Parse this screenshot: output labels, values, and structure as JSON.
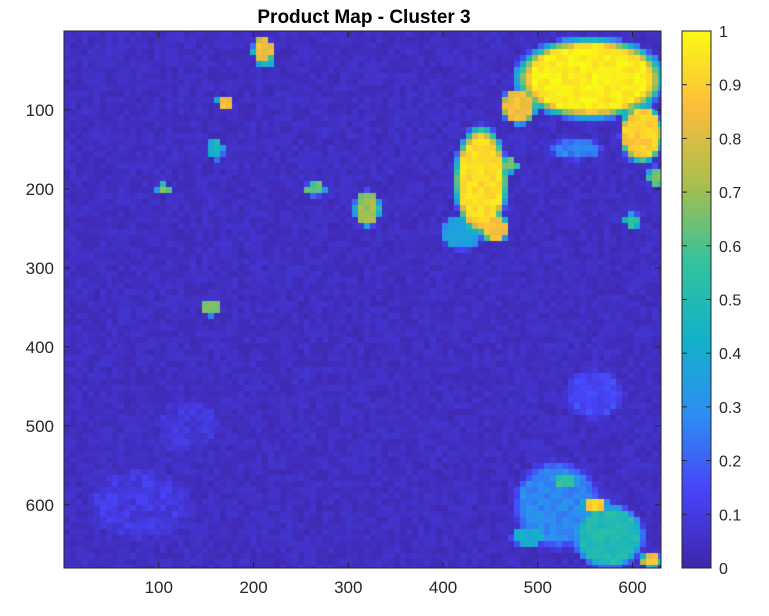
{
  "chart_data": {
    "type": "heatmap",
    "title": "Product Map - Cluster 3",
    "xlabel": "",
    "ylabel": "",
    "xlim": [
      0,
      630
    ],
    "ylim": [
      0,
      680
    ],
    "y_reversed": true,
    "x_ticks": [
      100,
      200,
      300,
      400,
      500,
      600
    ],
    "y_ticks": [
      100,
      200,
      300,
      400,
      500,
      600
    ],
    "grid": false,
    "colormap": "parula",
    "colormap_stops": [
      "#3e26a8",
      "#4743f8",
      "#2d8ef2",
      "#12b2c9",
      "#35c29c",
      "#a8bf4e",
      "#fdbc3c",
      "#f9fa14"
    ],
    "background_level": 0.02,
    "colorbar": {
      "position": "right",
      "range": [
        0,
        1
      ],
      "ticks": [
        "0",
        "0.1",
        "0.2",
        "0.3",
        "0.4",
        "0.5",
        "0.6",
        "0.7",
        "0.8",
        "0.9",
        "1"
      ]
    },
    "blobs": [
      {
        "x": 555,
        "y": 60,
        "rx": 85,
        "ry": 55,
        "v": 0.97
      },
      {
        "x": 610,
        "y": 130,
        "rx": 25,
        "ry": 40,
        "v": 0.9
      },
      {
        "x": 480,
        "y": 95,
        "rx": 20,
        "ry": 25,
        "v": 0.85
      },
      {
        "x": 440,
        "y": 190,
        "rx": 30,
        "ry": 75,
        "v": 0.93
      },
      {
        "x": 455,
        "y": 250,
        "rx": 15,
        "ry": 20,
        "v": 0.85
      },
      {
        "x": 540,
        "y": 150,
        "rx": 30,
        "ry": 15,
        "v": 0.25
      },
      {
        "x": 470,
        "y": 170,
        "rx": 10,
        "ry": 10,
        "v": 0.65
      },
      {
        "x": 420,
        "y": 255,
        "rx": 25,
        "ry": 25,
        "v": 0.35
      },
      {
        "x": 600,
        "y": 240,
        "rx": 10,
        "ry": 10,
        "v": 0.55
      },
      {
        "x": 625,
        "y": 185,
        "rx": 10,
        "ry": 15,
        "v": 0.65
      },
      {
        "x": 210,
        "y": 25,
        "rx": 12,
        "ry": 20,
        "v": 0.85
      },
      {
        "x": 215,
        "y": 40,
        "rx": 8,
        "ry": 10,
        "v": 0.45
      },
      {
        "x": 170,
        "y": 90,
        "rx": 10,
        "ry": 10,
        "v": 0.85
      },
      {
        "x": 160,
        "y": 150,
        "rx": 10,
        "ry": 15,
        "v": 0.45
      },
      {
        "x": 105,
        "y": 200,
        "rx": 8,
        "ry": 8,
        "v": 0.65
      },
      {
        "x": 265,
        "y": 200,
        "rx": 12,
        "ry": 10,
        "v": 0.6
      },
      {
        "x": 320,
        "y": 225,
        "rx": 15,
        "ry": 25,
        "v": 0.7
      },
      {
        "x": 155,
        "y": 350,
        "rx": 10,
        "ry": 12,
        "v": 0.65
      },
      {
        "x": 520,
        "y": 600,
        "rx": 50,
        "ry": 60,
        "v": 0.28
      },
      {
        "x": 575,
        "y": 640,
        "rx": 40,
        "ry": 45,
        "v": 0.5
      },
      {
        "x": 560,
        "y": 600,
        "rx": 15,
        "ry": 10,
        "v": 0.9
      },
      {
        "x": 620,
        "y": 670,
        "rx": 12,
        "ry": 12,
        "v": 0.85
      },
      {
        "x": 490,
        "y": 640,
        "rx": 20,
        "ry": 15,
        "v": 0.4
      },
      {
        "x": 530,
        "y": 570,
        "rx": 15,
        "ry": 10,
        "v": 0.55
      },
      {
        "x": 560,
        "y": 460,
        "rx": 35,
        "ry": 35,
        "v": 0.15
      },
      {
        "x": 80,
        "y": 600,
        "rx": 60,
        "ry": 50,
        "v": 0.1
      },
      {
        "x": 130,
        "y": 500,
        "rx": 40,
        "ry": 40,
        "v": 0.08
      }
    ]
  }
}
